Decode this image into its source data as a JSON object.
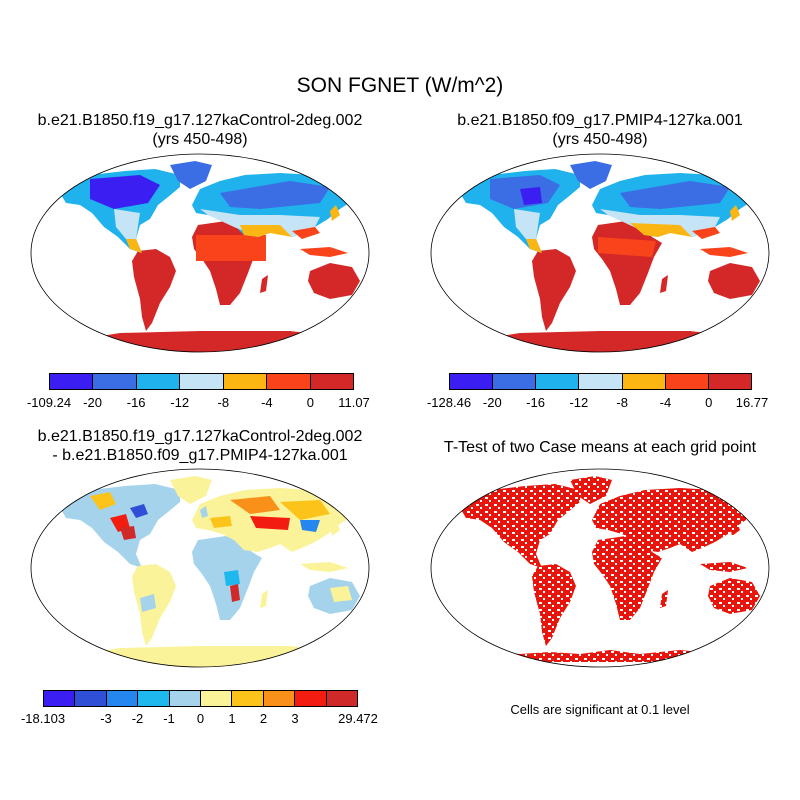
{
  "title": "SON FGNET (W/m^2)",
  "panels": [
    {
      "id": "case1",
      "title_line1": "b.e21.B1850.f19_g17.127kaControl-2deg.002",
      "title_line2": "(yrs 450-498)",
      "colorbar": {
        "colors": [
          "#3a1ef2",
          "#3b6ee4",
          "#1fb2ec",
          "#c5e4f5",
          "#fbb613",
          "#f9441b",
          "#d42828"
        ],
        "labels": [
          "-109.24",
          "-20",
          "-16",
          "-12",
          "-8",
          "-4",
          "0",
          "11.07"
        ]
      }
    },
    {
      "id": "case2",
      "title_line1": "b.e21.B1850.f09_g17.PMIP4-127ka.001",
      "title_line2": "(yrs 450-498)",
      "colorbar": {
        "colors": [
          "#3a1ef2",
          "#3b6ee4",
          "#1fb2ec",
          "#c5e4f5",
          "#fbb613",
          "#f9441b",
          "#d42828"
        ],
        "labels": [
          "-128.46",
          "-20",
          "-16",
          "-12",
          "-8",
          "-4",
          "0",
          "16.77"
        ]
      }
    },
    {
      "id": "difference",
      "title_line1": "b.e21.B1850.f19_g17.127kaControl-2deg.002",
      "title_line2": "- b.e21.B1850.f09_g17.PMIP4-127ka.001",
      "colorbar": {
        "colors": [
          "#3a1ef2",
          "#2f4fd6",
          "#2486ee",
          "#1fb8ee",
          "#a6d3ec",
          "#fbf39a",
          "#fcc31b",
          "#f89019",
          "#f21d10",
          "#cf2929"
        ],
        "labels": [
          "-18.103",
          "",
          "-3",
          "-2",
          "-1",
          "0",
          "1",
          "2",
          "3",
          "",
          "29.472"
        ]
      }
    },
    {
      "id": "ttest",
      "title_line1": "T-Test of two Case means at each grid point",
      "note": "Cells are significant at 0.1 level",
      "significant_color": "#e8150c"
    }
  ]
}
